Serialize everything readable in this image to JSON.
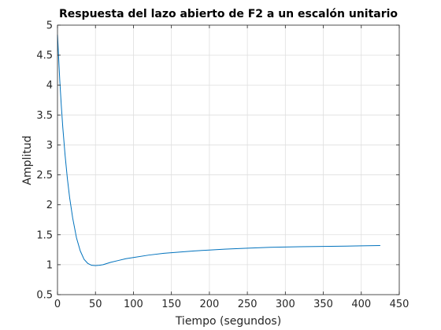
{
  "chart_data": {
    "type": "line",
    "title": "Respuesta del lazo abierto de F2 a un escalón unitario",
    "xlabel": "Tiempo (segundos)",
    "ylabel": "Amplitud",
    "xlim": [
      0,
      450
    ],
    "ylim": [
      0.5,
      5
    ],
    "xticks": [
      "0",
      "50",
      "100",
      "150",
      "200",
      "250",
      "300",
      "350",
      "400",
      "450"
    ],
    "yticks": [
      "0.5",
      "1",
      "1.5",
      "2",
      "2.5",
      "3",
      "3.5",
      "4",
      "4.5",
      "5"
    ],
    "grid": true,
    "line_color": "#0072bd",
    "series": [
      {
        "x": [
          0,
          1,
          2,
          3,
          5,
          7,
          10,
          13,
          16,
          20,
          25,
          30,
          35,
          40,
          45,
          50,
          55,
          60,
          70,
          80,
          90,
          100,
          120,
          140,
          160,
          180,
          200,
          220,
          250,
          280,
          300,
          320,
          350,
          380,
          400,
          425
        ],
        "y": [
          4.84,
          4.6,
          4.33,
          4.08,
          3.66,
          3.29,
          2.83,
          2.44,
          2.12,
          1.78,
          1.45,
          1.23,
          1.09,
          1.02,
          0.99,
          0.985,
          0.99,
          1.0,
          1.04,
          1.07,
          1.1,
          1.12,
          1.16,
          1.19,
          1.21,
          1.23,
          1.245,
          1.26,
          1.275,
          1.29,
          1.295,
          1.3,
          1.305,
          1.31,
          1.315,
          1.32
        ]
      }
    ]
  }
}
